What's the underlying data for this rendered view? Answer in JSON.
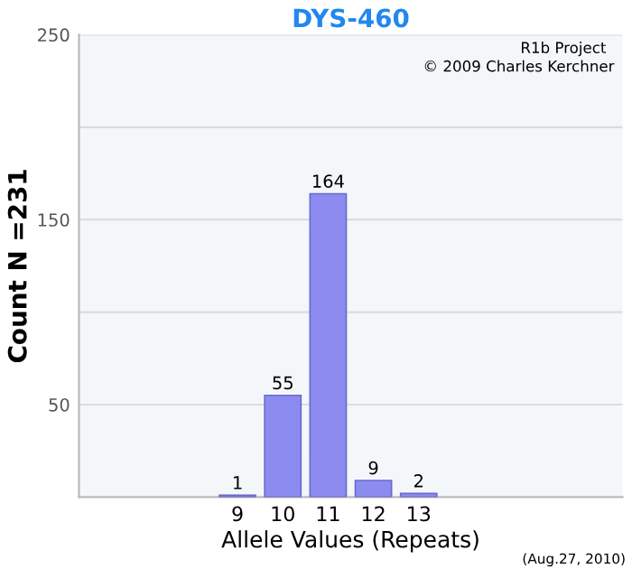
{
  "chart_data": {
    "type": "bar",
    "title": "DYS-460",
    "xlabel": "Allele Values (Repeats)",
    "ylabel": "Count N =231",
    "categories": [
      null,
      null,
      null,
      "9",
      "10",
      "11",
      "12",
      "13",
      null,
      null,
      null,
      null
    ],
    "values": [
      null,
      null,
      null,
      1,
      55,
      164,
      9,
      2,
      null,
      null,
      null,
      null
    ],
    "color": "#8c8cf0",
    "data_labels": true,
    "ylim": [
      0,
      250
    ],
    "yticks": [
      50,
      {
        "value": 100,
        "label": null
      },
      150,
      {
        "value": 200,
        "label": null
      },
      250
    ],
    "grid": "y",
    "annotations": [
      "R1b Project",
      "© 2009 Charles Kerchner",
      "(Aug.27, 2010)"
    ]
  }
}
